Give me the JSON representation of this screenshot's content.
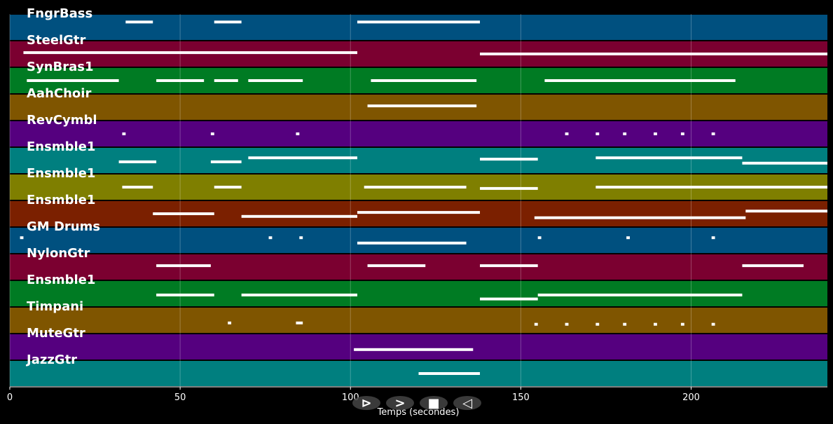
{
  "chart_data": {
    "type": "piano-roll",
    "xlabel": "Temps (secondes)",
    "xlim": [
      0,
      240
    ],
    "xticks": [
      0,
      50,
      100,
      150,
      200
    ],
    "grid": true,
    "tracks": [
      {
        "name": "FngrBass",
        "color": "#00507f",
        "notes": [
          [
            34,
            42,
            0.3
          ],
          [
            60,
            68,
            0.3
          ],
          [
            102,
            138,
            0.3
          ]
        ]
      },
      {
        "name": "SteelGtr",
        "color": "#7b0030",
        "notes": [
          [
            4,
            102,
            0.45
          ],
          [
            138,
            240,
            0.5
          ]
        ]
      },
      {
        "name": "SynBras1",
        "color": "#007b23",
        "notes": [
          [
            5,
            32,
            0.5
          ],
          [
            43,
            57,
            0.5
          ],
          [
            60,
            67,
            0.5
          ],
          [
            70,
            86,
            0.5
          ],
          [
            106,
            137,
            0.5
          ],
          [
            157,
            213,
            0.5
          ]
        ]
      },
      {
        "name": "AahChoir",
        "color": "#7f5500",
        "notes": [
          [
            105,
            137,
            0.45
          ]
        ]
      },
      {
        "name": "RevCymbl",
        "color": "#55007f",
        "notes": [
          [
            33,
            34,
            0.5
          ],
          [
            59,
            60,
            0.5
          ],
          [
            84,
            85,
            0.5
          ],
          [
            163,
            164,
            0.5
          ],
          [
            172,
            173,
            0.5
          ],
          [
            180,
            181,
            0.5
          ],
          [
            189,
            190,
            0.5
          ],
          [
            197,
            198,
            0.5
          ],
          [
            206,
            207,
            0.5
          ]
        ]
      },
      {
        "name": "Ensmble1",
        "color": "#007f7f",
        "notes": [
          [
            32,
            43,
            0.55
          ],
          [
            59,
            68,
            0.55
          ],
          [
            70,
            102,
            0.4
          ],
          [
            138,
            155,
            0.45
          ],
          [
            172,
            215,
            0.4
          ],
          [
            215,
            240,
            0.6
          ]
        ]
      },
      {
        "name": "Ensmble1",
        "color": "#7f7f00",
        "notes": [
          [
            33,
            42,
            0.5
          ],
          [
            60,
            68,
            0.5
          ],
          [
            104,
            134,
            0.5
          ],
          [
            138,
            155,
            0.55
          ],
          [
            172,
            240,
            0.5
          ]
        ]
      },
      {
        "name": "Ensmble1",
        "color": "#7b2000",
        "notes": [
          [
            42,
            60,
            0.5
          ],
          [
            68,
            102,
            0.6
          ],
          [
            102,
            138,
            0.45
          ],
          [
            154,
            216,
            0.65
          ],
          [
            216,
            240,
            0.4
          ]
        ]
      },
      {
        "name": "GM Drums",
        "color": "#00507f",
        "notes": [
          [
            3,
            4,
            0.4
          ],
          [
            76,
            77,
            0.4
          ],
          [
            85,
            86,
            0.4
          ],
          [
            102,
            134,
            0.6
          ],
          [
            155,
            156,
            0.4
          ],
          [
            181,
            182,
            0.4
          ],
          [
            206,
            207,
            0.4
          ]
        ]
      },
      {
        "name": "NylonGtr",
        "color": "#7b0030",
        "notes": [
          [
            43,
            59,
            0.45
          ],
          [
            105,
            122,
            0.45
          ],
          [
            138,
            155,
            0.45
          ],
          [
            215,
            233,
            0.45
          ]
        ]
      },
      {
        "name": "Ensmble1",
        "color": "#007b23",
        "notes": [
          [
            43,
            60,
            0.55
          ],
          [
            68,
            102,
            0.55
          ],
          [
            138,
            155,
            0.7
          ],
          [
            155,
            215,
            0.55
          ]
        ]
      },
      {
        "name": "Timpani",
        "color": "#7f5500",
        "notes": [
          [
            64,
            65,
            0.6
          ],
          [
            84,
            86,
            0.6
          ],
          [
            154,
            155,
            0.65
          ],
          [
            163,
            164,
            0.65
          ],
          [
            172,
            173,
            0.65
          ],
          [
            180,
            181,
            0.65
          ],
          [
            189,
            190,
            0.65
          ],
          [
            197,
            198,
            0.65
          ],
          [
            206,
            207,
            0.65
          ]
        ]
      },
      {
        "name": "MuteGtr",
        "color": "#55007f",
        "notes": [
          [
            101,
            136,
            0.6
          ]
        ]
      },
      {
        "name": "JazzGtr",
        "color": "#007f7f",
        "notes": [
          [
            120,
            138,
            0.5
          ]
        ]
      }
    ]
  },
  "controls": [
    {
      "name": "play-from-start-button",
      "glyph": "⊳"
    },
    {
      "name": "play-button",
      "glyph": ">"
    },
    {
      "name": "stop-button",
      "glyph": "■"
    },
    {
      "name": "rewind-button",
      "glyph": "◁"
    }
  ]
}
